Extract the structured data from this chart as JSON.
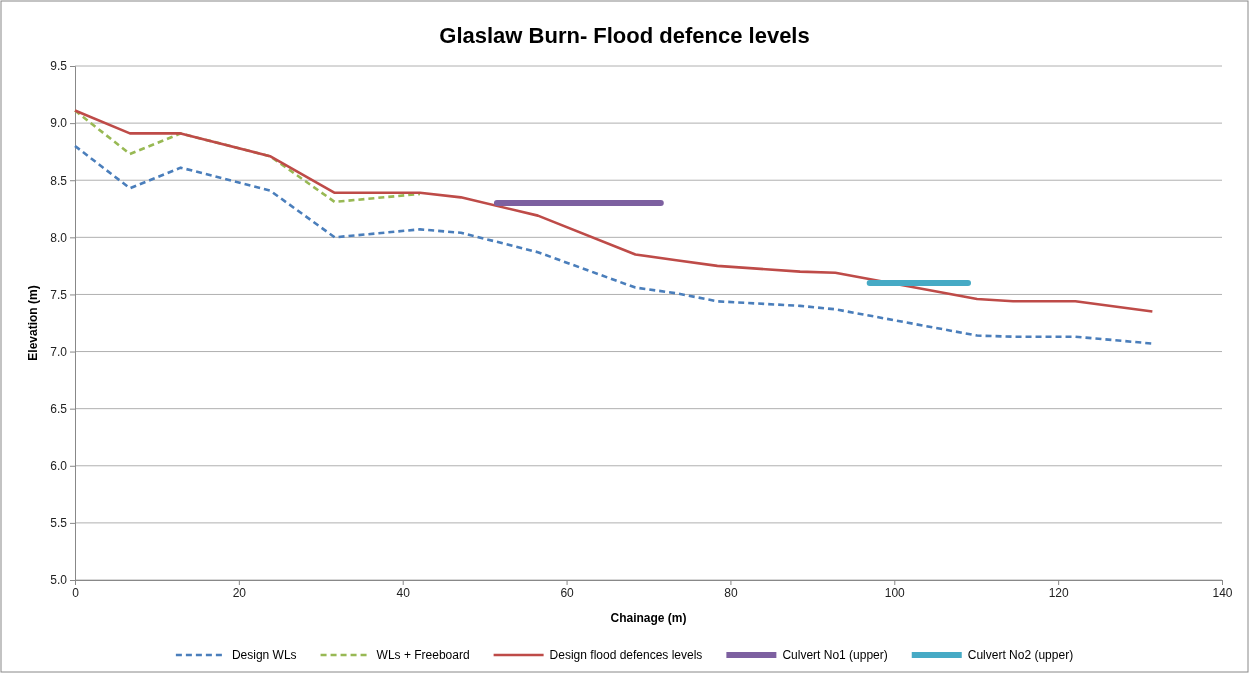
{
  "chart_data": {
    "type": "line",
    "title": "Glaslaw Burn- Flood defence levels",
    "xlabel": "Chainage (m)",
    "ylabel": "Elevation (m)",
    "xlim": [
      0,
      140
    ],
    "xticks": [
      0,
      20,
      40,
      60,
      80,
      100,
      120,
      140
    ],
    "ylim": [
      5.0,
      9.5
    ],
    "yticks": [
      {
        "value": 5.0,
        "label": "5.0"
      },
      {
        "value": 5.5,
        "label": "5.5"
      },
      {
        "value": 6.0,
        "label": "6.0"
      },
      {
        "value": 6.5,
        "label": "6.5"
      },
      {
        "value": 7.0,
        "label": "7.0"
      },
      {
        "value": 7.5,
        "label": "7.5"
      },
      {
        "value": 8.0,
        "label": "8.0"
      },
      {
        "value": 8.5,
        "label": "8.5"
      },
      {
        "value": 9.0,
        "label": "9.0"
      },
      {
        "value": 9.5,
        "label": "9.5"
      }
    ],
    "grid": "y",
    "legend": "bottom",
    "marker": "none",
    "series": [
      {
        "name": "Design WLs",
        "color": "#4a7ebb",
        "line_style": "dashed",
        "x": [
          0,
          6.7,
          12.9,
          23.8,
          31.7,
          42.1,
          47.1,
          56.5,
          68.4,
          73.4,
          78.4,
          88.5,
          92.8,
          110.1,
          114.5,
          122.1,
          131.5
        ],
        "values": [
          8.8,
          8.43,
          8.61,
          8.41,
          8.0,
          8.07,
          8.04,
          7.87,
          7.56,
          7.51,
          7.44,
          7.4,
          7.37,
          7.14,
          7.13,
          7.13,
          7.07
        ]
      },
      {
        "name": "WLs + Freeboard",
        "color": "#98b954",
        "line_style": "dashed",
        "x": [
          0,
          6.7,
          12.9,
          23.8,
          31.7,
          42.1
        ],
        "values": [
          9.11,
          8.73,
          8.91,
          8.71,
          8.31,
          8.38
        ]
      },
      {
        "name": "Design flood defences levels",
        "color": "#be4b48",
        "line_style": "solid",
        "x": [
          0,
          6.7,
          12.9,
          23.8,
          31.7,
          42.1,
          47.1,
          56.5,
          68.4,
          73.4,
          78.4,
          88.5,
          92.8,
          110.1,
          114.5,
          122.1,
          131.5
        ],
        "values": [
          9.11,
          8.91,
          8.91,
          8.71,
          8.39,
          8.39,
          8.35,
          8.19,
          7.85,
          7.8,
          7.75,
          7.7,
          7.69,
          7.46,
          7.44,
          7.44,
          7.35
        ]
      },
      {
        "name": "Culvert No1 (upper)",
        "color": "#7d60a0",
        "line_style": "solid",
        "x": [
          51.5,
          71.5
        ],
        "values": [
          8.3,
          8.3
        ]
      },
      {
        "name": "Culvert No2 (upper)",
        "color": "#46aac5",
        "line_style": "solid",
        "x": [
          97,
          109
        ],
        "values": [
          7.6,
          7.6
        ]
      }
    ]
  }
}
